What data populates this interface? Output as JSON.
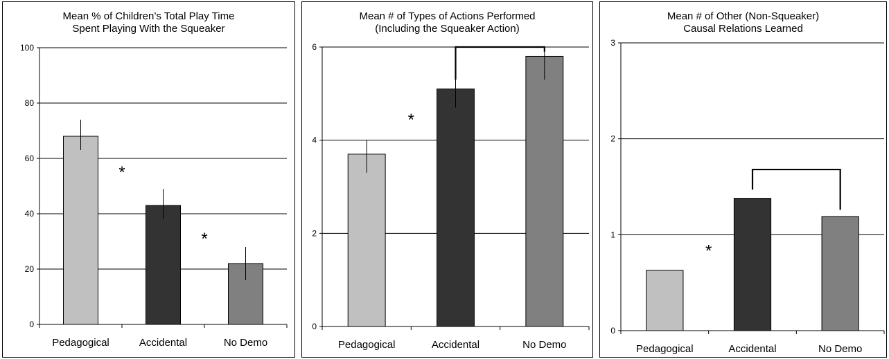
{
  "chart_data": [
    {
      "type": "bar",
      "title_lines": [
        "Mean % of Children’s Total Play Time",
        "Spent Playing With the Squeaker"
      ],
      "categories": [
        "Pedagogical",
        "Accidental",
        "No Demo"
      ],
      "values": [
        68,
        43,
        22
      ],
      "error": [
        [
          63,
          74
        ],
        [
          38,
          49
        ],
        [
          16,
          28
        ]
      ],
      "ylim": [
        0,
        100
      ],
      "yticks": [
        0,
        20,
        40,
        60,
        80,
        100
      ],
      "ytick_labels": [
        "0",
        "20",
        "40",
        "60",
        "80",
        "100"
      ],
      "grid": true,
      "colors": [
        "#c0c0c0",
        "#333333",
        "#808080"
      ],
      "annotations": [
        {
          "text": "*",
          "x": 0.5,
          "y": 56
        },
        {
          "text": "*",
          "x": 1.5,
          "y": 32
        }
      ],
      "brackets": []
    },
    {
      "type": "bar",
      "title_lines": [
        "Mean # of Types of Actions Performed",
        "(Including the Squeaker Action)"
      ],
      "categories": [
        "Pedagogical",
        "Accidental",
        "No Demo"
      ],
      "values": [
        3.7,
        5.1,
        5.8
      ],
      "error": [
        [
          3.3,
          4.0
        ],
        [
          4.7,
          5.45
        ],
        [
          5.3,
          5.9
        ]
      ],
      "ylim": [
        0,
        6
      ],
      "yticks": [
        0,
        2,
        4,
        6
      ],
      "ytick_labels": [
        "0",
        "2",
        "4",
        "6"
      ],
      "grid": true,
      "colors": [
        "#c0c0c0",
        "#333333",
        "#808080"
      ],
      "annotations": [
        {
          "text": "*",
          "x": 0.5,
          "y": 4.5
        }
      ],
      "brackets": [
        {
          "from": 1,
          "to": 2,
          "y": 6.0,
          "drop_from": 5.3,
          "drop_to": 5.9
        }
      ]
    },
    {
      "type": "bar",
      "title_lines": [
        "Mean # of Other (Non-Squeaker)",
        "Causal Relations Learned"
      ],
      "categories": [
        "Pedagogical",
        "Accidental",
        "No Demo"
      ],
      "values": [
        0.63,
        1.38,
        1.19
      ],
      "error": [],
      "ylim": [
        0,
        3
      ],
      "yticks": [
        0,
        1,
        2,
        3
      ],
      "ytick_labels": [
        "0",
        "1",
        "2",
        "3"
      ],
      "grid": true,
      "colors": [
        "#c0c0c0",
        "#333333",
        "#808080"
      ],
      "annotations": [
        {
          "text": "*",
          "x": 0.5,
          "y": 0.86
        }
      ],
      "brackets": [
        {
          "from": 1,
          "to": 2,
          "y": 1.68,
          "drop_from": 1.47,
          "drop_to": 1.26
        }
      ]
    }
  ]
}
